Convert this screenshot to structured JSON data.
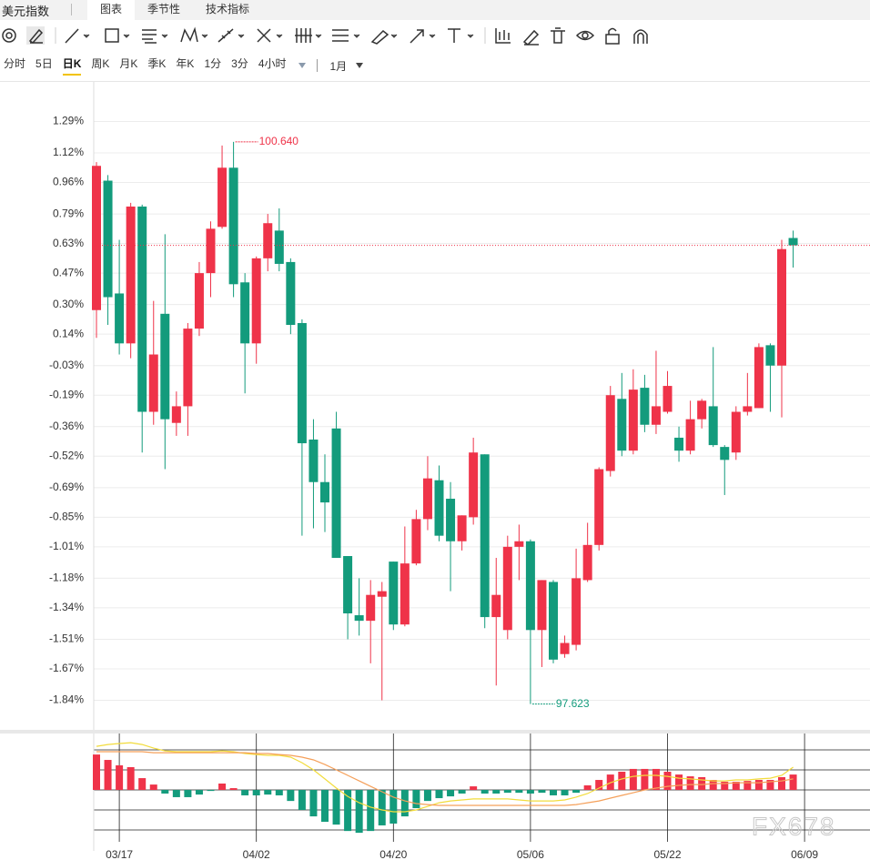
{
  "header": {
    "title": "美元指数",
    "tabs": [
      "图表",
      "季节性",
      "技术指标"
    ]
  },
  "periods": [
    "分时",
    "5日",
    "日K",
    "周K",
    "月K",
    "季K",
    "年K",
    "1分",
    "3分",
    "4小时"
  ],
  "range": "1月",
  "watermark": "FX678",
  "chart_data": [
    {
      "type": "candlestick",
      "up_color": "#ef3349",
      "down_color": "#139b7c",
      "ylim": [
        -1.99,
        1.44
      ],
      "yticks": [
        {
          "value": 1.29,
          "label": "1.29%"
        },
        {
          "value": 1.12,
          "label": "1.12%"
        },
        {
          "value": 0.96,
          "label": "0.96%"
        },
        {
          "value": 0.79,
          "label": "0.79%"
        },
        {
          "value": 0.63,
          "label": "0.63%"
        },
        {
          "value": 0.47,
          "label": "0.47%"
        },
        {
          "value": 0.3,
          "label": "0.30%"
        },
        {
          "value": 0.14,
          "label": "0.14%"
        },
        {
          "value": -0.03,
          "label": "-0.03%"
        },
        {
          "value": -0.19,
          "label": "-0.19%"
        },
        {
          "value": -0.36,
          "label": "-0.36%"
        },
        {
          "value": -0.52,
          "label": "-0.52%"
        },
        {
          "value": -0.69,
          "label": "-0.69%"
        },
        {
          "value": -0.85,
          "label": "-0.85%"
        },
        {
          "value": -1.01,
          "label": "-1.01%"
        },
        {
          "value": -1.18,
          "label": "-1.18%"
        },
        {
          "value": -1.34,
          "label": "-1.34%"
        },
        {
          "value": -1.51,
          "label": "-1.51%"
        },
        {
          "value": -1.67,
          "label": "-1.67%"
        },
        {
          "value": -1.84,
          "label": "-1.84%"
        }
      ],
      "grid": true,
      "high_label": "100.640",
      "low_label": "97.623",
      "last_price_line": true,
      "open": [
        0.27,
        0.97,
        0.36,
        0.09,
        0.83,
        -0.28,
        0.25,
        -0.34,
        -0.25,
        0.17,
        0.47,
        0.72,
        1.04,
        0.42,
        0.09,
        0.55,
        0.7,
        0.53,
        0.2,
        -0.43,
        -0.66,
        -0.37,
        -1.06,
        -1.38,
        -1.41,
        -1.28,
        -1.09,
        -1.43,
        -1.1,
        -0.86,
        -0.65,
        -0.75,
        -0.98,
        -0.85,
        -0.51,
        -1.39,
        -1.46,
        -1.01,
        -0.98,
        -1.46,
        -1.2,
        -1.59,
        -1.54,
        -1.19,
        -1.0,
        -0.6,
        -0.21,
        -0.49,
        -0.15,
        -0.35,
        -0.28,
        -0.42,
        -0.49,
        -0.32,
        -0.25,
        -0.47,
        -0.5,
        -0.28,
        -0.26,
        0.08,
        -0.03,
        0.66,
        null
      ],
      "high": [
        1.07,
        1.0,
        0.65,
        0.85,
        0.84,
        0.32,
        0.68,
        -0.17,
        0.2,
        0.53,
        0.75,
        1.16,
        1.18,
        0.47,
        0.56,
        0.79,
        0.82,
        0.55,
        0.22,
        -0.32,
        -0.51,
        -0.28,
        -1.06,
        -1.18,
        -1.19,
        -1.2,
        -1.09,
        -0.9,
        -0.81,
        -0.52,
        -0.57,
        -0.66,
        -0.84,
        -0.42,
        -0.51,
        -1.07,
        -0.95,
        -0.89,
        -0.97,
        -1.19,
        -1.19,
        -1.49,
        -1.02,
        -0.88,
        -0.58,
        -0.14,
        -0.07,
        -0.05,
        -0.08,
        0.05,
        -0.06,
        -0.36,
        -0.22,
        -0.21,
        0.07,
        -0.46,
        -0.25,
        -0.07,
        0.09,
        0.09,
        0.65,
        0.7,
        null
      ],
      "low": [
        0.12,
        0.19,
        0.03,
        0.01,
        -0.5,
        -0.35,
        -0.59,
        -0.41,
        -0.41,
        0.13,
        0.34,
        0.71,
        0.34,
        -0.18,
        -0.02,
        0.48,
        0.48,
        0.14,
        -0.95,
        -0.91,
        -0.93,
        -1.07,
        -1.51,
        -1.49,
        -1.64,
        -1.84,
        -1.46,
        -1.44,
        -1.11,
        -0.92,
        -0.98,
        -1.25,
        -1.03,
        -0.89,
        -1.45,
        -1.76,
        -1.51,
        -1.19,
        -1.86,
        -1.66,
        -1.64,
        -1.61,
        -1.57,
        -1.2,
        -1.03,
        -0.63,
        -0.52,
        -0.51,
        -0.39,
        -0.4,
        -0.29,
        -0.55,
        -0.51,
        -0.37,
        -0.47,
        -0.73,
        -0.54,
        -0.3,
        -0.26,
        -0.28,
        -0.31,
        0.5,
        null
      ],
      "close": [
        1.05,
        0.34,
        0.09,
        0.83,
        -0.28,
        0.03,
        -0.32,
        -0.25,
        0.17,
        0.47,
        0.71,
        1.04,
        0.41,
        0.09,
        0.55,
        0.74,
        0.52,
        0.19,
        -0.45,
        -0.66,
        -0.77,
        -1.07,
        -1.37,
        -1.41,
        -1.27,
        -1.25,
        -1.43,
        -1.1,
        -0.86,
        -0.64,
        -0.95,
        -0.98,
        -0.84,
        -0.5,
        -1.39,
        -1.27,
        -1.01,
        -0.98,
        -1.46,
        -1.19,
        -1.62,
        -1.53,
        -1.18,
        -1.0,
        -0.59,
        -0.19,
        -0.49,
        -0.16,
        -0.35,
        -0.25,
        -0.14,
        -0.49,
        -0.32,
        -0.22,
        -0.46,
        -0.54,
        -0.28,
        -0.25,
        0.07,
        -0.03,
        0.6,
        0.62,
        null
      ]
    },
    {
      "type": "macd",
      "categories": [
        null,
        null,
        "03/17",
        null,
        null,
        null,
        null,
        null,
        null,
        null,
        null,
        null,
        null,
        null,
        "04/02",
        null,
        null,
        null,
        null,
        null,
        null,
        null,
        null,
        null,
        null,
        null,
        "04/20",
        null,
        null,
        null,
        null,
        null,
        null,
        null,
        null,
        null,
        null,
        null,
        "05/06",
        null,
        null,
        null,
        null,
        null,
        null,
        null,
        null,
        null,
        null,
        null,
        "05/22",
        null,
        null,
        null,
        null,
        null,
        null,
        null,
        null,
        null,
        null,
        null,
        "06/09"
      ],
      "up_color": "#ef3349",
      "down_color": "#139b7c",
      "ylim": [
        -2.59,
        2.82
      ],
      "yticks": [
        -2,
        -1,
        0,
        1,
        2
      ],
      "grid": true,
      "histogram": [
        1.77,
        1.5,
        1.23,
        1.14,
        0.59,
        0.27,
        -0.18,
        -0.36,
        -0.36,
        -0.23,
        -0.05,
        0.32,
        0.09,
        -0.27,
        -0.27,
        -0.23,
        -0.27,
        -0.55,
        -1.0,
        -1.32,
        -1.59,
        -1.73,
        -2.05,
        -2.14,
        -2.05,
        -1.77,
        -1.68,
        -1.32,
        -0.91,
        -0.55,
        -0.41,
        -0.32,
        -0.18,
        0.18,
        -0.18,
        -0.18,
        -0.14,
        -0.14,
        -0.18,
        -0.14,
        -0.27,
        -0.27,
        -0.14,
        0.23,
        0.5,
        0.77,
        0.91,
        1.05,
        1.05,
        1.05,
        0.91,
        0.77,
        0.68,
        0.64,
        0.5,
        0.41,
        0.41,
        0.45,
        0.5,
        0.5,
        0.64,
        0.77,
        null
      ],
      "lines": [
        {
          "color": "#f2dc3c",
          "values": [
            2.18,
            2.27,
            2.32,
            2.36,
            2.27,
            2.09,
            1.95,
            1.91,
            1.91,
            1.91,
            1.91,
            1.95,
            1.91,
            1.82,
            1.77,
            1.73,
            1.73,
            1.64,
            1.36,
            1.0,
            0.55,
            0.09,
            -0.32,
            -0.64,
            -0.86,
            -1.0,
            -1.09,
            -1.09,
            -1.0,
            -0.82,
            -0.64,
            -0.55,
            -0.5,
            -0.45,
            -0.45,
            -0.45,
            -0.45,
            -0.5,
            -0.55,
            -0.55,
            -0.55,
            -0.5,
            -0.36,
            -0.18,
            0.09,
            0.36,
            0.55,
            0.68,
            0.73,
            0.73,
            0.68,
            0.59,
            0.55,
            0.5,
            0.45,
            0.45,
            0.5,
            0.5,
            0.55,
            0.59,
            0.73,
            1.14,
            null
          ]
        },
        {
          "color": "#f5a05a",
          "values": [
            1.91,
            1.91,
            1.91,
            1.91,
            1.91,
            1.86,
            1.86,
            1.86,
            1.86,
            1.86,
            1.86,
            1.86,
            1.86,
            1.86,
            1.82,
            1.82,
            1.77,
            1.73,
            1.64,
            1.5,
            1.27,
            1.0,
            0.73,
            0.45,
            0.18,
            -0.09,
            -0.36,
            -0.55,
            -0.68,
            -0.73,
            -0.77,
            -0.77,
            -0.77,
            -0.77,
            -0.77,
            -0.77,
            -0.77,
            -0.77,
            -0.77,
            -0.77,
            -0.77,
            -0.77,
            -0.73,
            -0.64,
            -0.55,
            -0.41,
            -0.27,
            -0.14,
            0,
            0.09,
            0.18,
            0.23,
            0.27,
            0.27,
            0.32,
            0.32,
            0.36,
            0.36,
            0.36,
            0.41,
            0.45,
            0.55,
            null
          ]
        }
      ]
    }
  ]
}
